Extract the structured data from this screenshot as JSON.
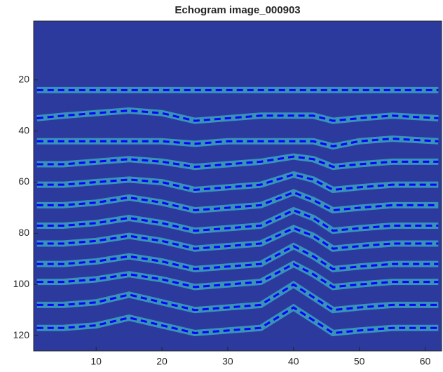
{
  "chart_data": {
    "type": "line",
    "title": "Echogram image_000903",
    "background": "#2b3a9c",
    "band_color": "#3fb8c8",
    "line_style": "dashed",
    "xlim": [
      0.5,
      62.5
    ],
    "ylim": [
      -3,
      126
    ],
    "y_reversed": true,
    "xticks": [
      10,
      20,
      30,
      40,
      50,
      60
    ],
    "yticks": [
      20,
      40,
      60,
      80,
      100,
      120
    ],
    "x": [
      1,
      5,
      10,
      15,
      20,
      25,
      30,
      35,
      40,
      43,
      46,
      50,
      55,
      62
    ],
    "series": [
      {
        "color": "#0000ff",
        "values": [
          24,
          24,
          24,
          24,
          24,
          24,
          24,
          24,
          24,
          24,
          24,
          24,
          24,
          24
        ]
      },
      {
        "color": "#0000ff",
        "values": [
          35,
          34,
          33,
          32,
          33,
          36,
          35,
          34,
          34,
          34,
          36,
          35,
          34,
          35
        ]
      },
      {
        "color": "#0000ff",
        "values": [
          44,
          44,
          44,
          44,
          44,
          45,
          44,
          44,
          44,
          44,
          46,
          44,
          43,
          44
        ]
      },
      {
        "color": "#0000ff",
        "values": [
          53,
          53,
          52,
          51,
          52,
          54,
          53,
          52,
          50,
          51,
          54,
          53,
          52,
          52
        ]
      },
      {
        "color": "#0000ff",
        "values": [
          61,
          61,
          60,
          59,
          60,
          63,
          62,
          61,
          57,
          59,
          63,
          62,
          61,
          61
        ]
      },
      {
        "color": "#0000ff",
        "values": [
          69,
          69,
          68,
          66,
          68,
          71,
          70,
          69,
          64,
          67,
          71,
          70,
          69,
          69
        ]
      },
      {
        "color": "#0000ff",
        "values": [
          77,
          77,
          76,
          74,
          76,
          79,
          78,
          77,
          71,
          74,
          79,
          78,
          77,
          77
        ]
      },
      {
        "color": "#0000ff",
        "values": [
          84,
          84,
          83,
          81,
          83,
          86,
          85,
          84,
          78,
          81,
          86,
          85,
          84,
          84
        ]
      },
      {
        "color": "#0000ff",
        "values": [
          92,
          92,
          91,
          89,
          91,
          94,
          93,
          92,
          85,
          89,
          94,
          93,
          92,
          92
        ]
      },
      {
        "color": "#0000ff",
        "values": [
          99,
          99,
          98,
          96,
          98,
          101,
          100,
          99,
          92,
          96,
          101,
          100,
          99,
          99
        ]
      },
      {
        "color": "#0000ff",
        "values": [
          108,
          108,
          107,
          104,
          107,
          110,
          109,
          108,
          100,
          105,
          110,
          109,
          108,
          108
        ]
      },
      {
        "color": "#0000ff",
        "values": [
          117,
          117,
          116,
          113,
          116,
          119,
          118,
          117,
          109,
          114,
          119,
          118,
          117,
          117
        ]
      }
    ]
  }
}
